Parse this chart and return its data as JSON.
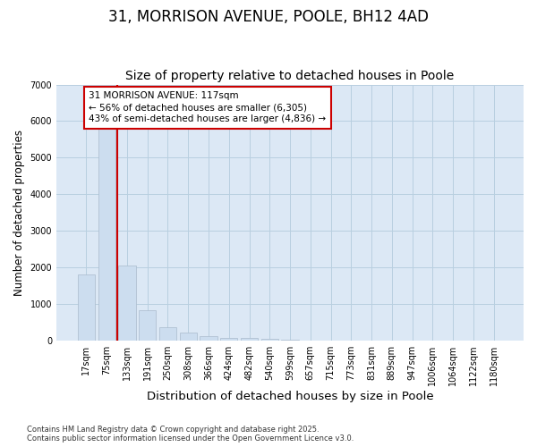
{
  "title_line1": "31, MORRISON AVENUE, POOLE, BH12 4AD",
  "title_line2": "Size of property relative to detached houses in Poole",
  "xlabel": "Distribution of detached houses by size in Poole",
  "ylabel": "Number of detached properties",
  "categories": [
    "17sqm",
    "75sqm",
    "133sqm",
    "191sqm",
    "250sqm",
    "308sqm",
    "366sqm",
    "424sqm",
    "482sqm",
    "540sqm",
    "599sqm",
    "657sqm",
    "715sqm",
    "773sqm",
    "831sqm",
    "889sqm",
    "947sqm",
    "1006sqm",
    "1064sqm",
    "1122sqm",
    "1180sqm"
  ],
  "values": [
    1800,
    5800,
    2050,
    840,
    370,
    220,
    120,
    80,
    70,
    60,
    20,
    10,
    5,
    2,
    1,
    0,
    0,
    0,
    0,
    0,
    0
  ],
  "bar_color": "#ccddef",
  "bar_edgecolor": "#aabbcc",
  "vline_color": "#cc0000",
  "vline_x": 1.5,
  "annotation_text": "31 MORRISON AVENUE: 117sqm\n← 56% of detached houses are smaller (6,305)\n43% of semi-detached houses are larger (4,836) →",
  "annotation_box_edgecolor": "#cc0000",
  "annotation_facecolor": "white",
  "ylim": [
    0,
    7000
  ],
  "yticks": [
    0,
    1000,
    2000,
    3000,
    4000,
    5000,
    6000,
    7000
  ],
  "grid_color": "#b8cfe0",
  "bg_color": "#dce8f5",
  "footnote": "Contains HM Land Registry data © Crown copyright and database right 2025.\nContains public sector information licensed under the Open Government Licence v3.0.",
  "title_fontsize": 12,
  "subtitle_fontsize": 10,
  "xlabel_fontsize": 9.5,
  "ylabel_fontsize": 8.5,
  "tick_fontsize": 7,
  "annot_fontsize": 7.5,
  "footnote_fontsize": 6
}
